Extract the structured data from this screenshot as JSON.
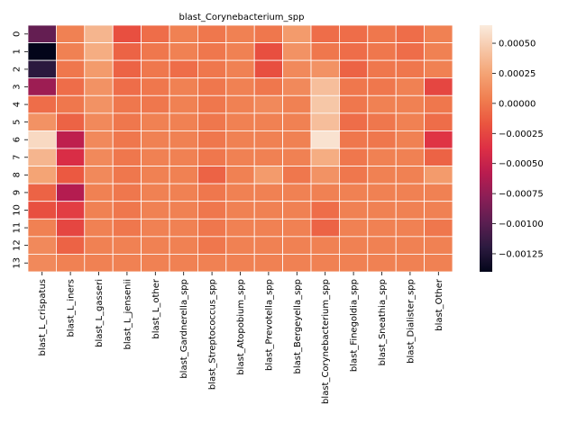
{
  "chart_data": {
    "type": "heatmap",
    "title": "blast_Corynebacterium_spp",
    "columns": [
      "blast_L_crispatus",
      "blast_L_iners",
      "blast_L_gasseri",
      "blast_L_jensenii",
      "blast_L_other",
      "blast_Gardnerella_spp",
      "blast_Streptococcus_spp",
      "blast_Atopobium_spp",
      "blast_Prevotella_spp",
      "blast_Bergeyella_spp",
      "blast_Corynebacterium_spp",
      "blast_Finegoldia_spp",
      "blast_Sneathia_spp",
      "blast_Dialister_spp",
      "blast_Other"
    ],
    "rows": [
      "0",
      "1",
      "2",
      "3",
      "4",
      "5",
      "6",
      "7",
      "8",
      "9",
      "10",
      "11",
      "12",
      "13"
    ],
    "values": [
      [
        -0.00095,
        5e-05,
        0.00035,
        -0.0002,
        -5e-05,
        5e-05,
        0.0,
        5e-05,
        0.0,
        0.0002,
        -5e-05,
        -5e-05,
        0.0,
        -5e-05,
        5e-05
      ],
      [
        -0.0014,
        5e-05,
        0.0003,
        -0.0001,
        0.0,
        5e-05,
        0.0,
        5e-05,
        -0.0002,
        0.00015,
        0.0,
        -5e-05,
        0.0,
        -5e-05,
        5e-05
      ],
      [
        -0.0012,
        0.0,
        0.0002,
        -0.0001,
        0.0,
        -5e-05,
        0.0,
        5e-05,
        -0.0002,
        0.0001,
        0.00015,
        -0.0001,
        0.0,
        0.0,
        5e-05
      ],
      [
        -0.0007,
        -5e-05,
        0.00015,
        -5e-05,
        0.0,
        5e-05,
        0.0,
        5e-05,
        0.0,
        0.0001,
        0.0004,
        0.0,
        0.0,
        5e-05,
        -0.00025
      ],
      [
        -5e-05,
        0.0,
        0.00015,
        0.0,
        0.0,
        5e-05,
        0.0,
        5e-05,
        0.0001,
        5e-05,
        0.00045,
        0.0,
        5e-05,
        5e-05,
        0.0
      ],
      [
        0.00015,
        -0.0001,
        0.0001,
        0.0,
        5e-05,
        5e-05,
        0.0,
        5e-05,
        5e-05,
        5e-05,
        0.0004,
        -5e-05,
        0.0,
        5e-05,
        -5e-05
      ],
      [
        0.00055,
        -0.00055,
        0.0001,
        0.0,
        5e-05,
        5e-05,
        0.0,
        5e-05,
        5e-05,
        5e-05,
        0.0006,
        0.0,
        0.0,
        5e-05,
        -0.00035
      ],
      [
        0.00035,
        -0.0004,
        0.0001,
        0.0,
        5e-05,
        5e-05,
        0.0,
        5e-05,
        5e-05,
        5e-05,
        0.0003,
        0.0,
        5e-05,
        5e-05,
        -0.0001
      ],
      [
        0.00025,
        -0.00015,
        0.0001,
        0.0,
        5e-05,
        5e-05,
        -0.0001,
        5e-05,
        0.0002,
        0.0,
        0.00015,
        0.0,
        5e-05,
        5e-05,
        0.0002
      ],
      [
        -0.0001,
        -0.0006,
        5e-05,
        0.0,
        5e-05,
        5e-05,
        0.0,
        5e-05,
        5e-05,
        5e-05,
        5e-05,
        5e-05,
        5e-05,
        5e-05,
        5e-05
      ],
      [
        -0.0002,
        -0.0003,
        5e-05,
        0.0,
        5e-05,
        5e-05,
        0.0,
        5e-05,
        5e-05,
        5e-05,
        -5e-05,
        5e-05,
        5e-05,
        5e-05,
        5e-05
      ],
      [
        5e-05,
        -0.00025,
        5e-05,
        0.0,
        5e-05,
        5e-05,
        0.0,
        5e-05,
        5e-05,
        5e-05,
        -0.0001,
        5e-05,
        5e-05,
        5e-05,
        0.0
      ],
      [
        0.0001,
        -0.0001,
        5e-05,
        5e-05,
        5e-05,
        5e-05,
        0.0,
        5e-05,
        5e-05,
        5e-05,
        5e-05,
        5e-05,
        5e-05,
        5e-05,
        5e-05
      ],
      [
        0.0001,
        5e-05,
        5e-05,
        5e-05,
        5e-05,
        5e-05,
        5e-05,
        5e-05,
        5e-05,
        5e-05,
        5e-05,
        5e-05,
        5e-05,
        5e-05,
        5e-05
      ]
    ],
    "vmin": -0.0014,
    "vmax": 0.00065,
    "colormap": "rocket",
    "colorbar_ticks": [
      -0.00125,
      -0.001,
      -0.00075,
      -0.0005,
      -0.00025,
      0.0,
      0.00025,
      0.0005
    ],
    "colorbar_tick_labels": [
      "−0.00125",
      "−0.00100",
      "−0.00075",
      "−0.00050",
      "−0.00025",
      "0.00000",
      "0.00025",
      "0.00050"
    ],
    "cell_border_color": "#ffffff"
  }
}
